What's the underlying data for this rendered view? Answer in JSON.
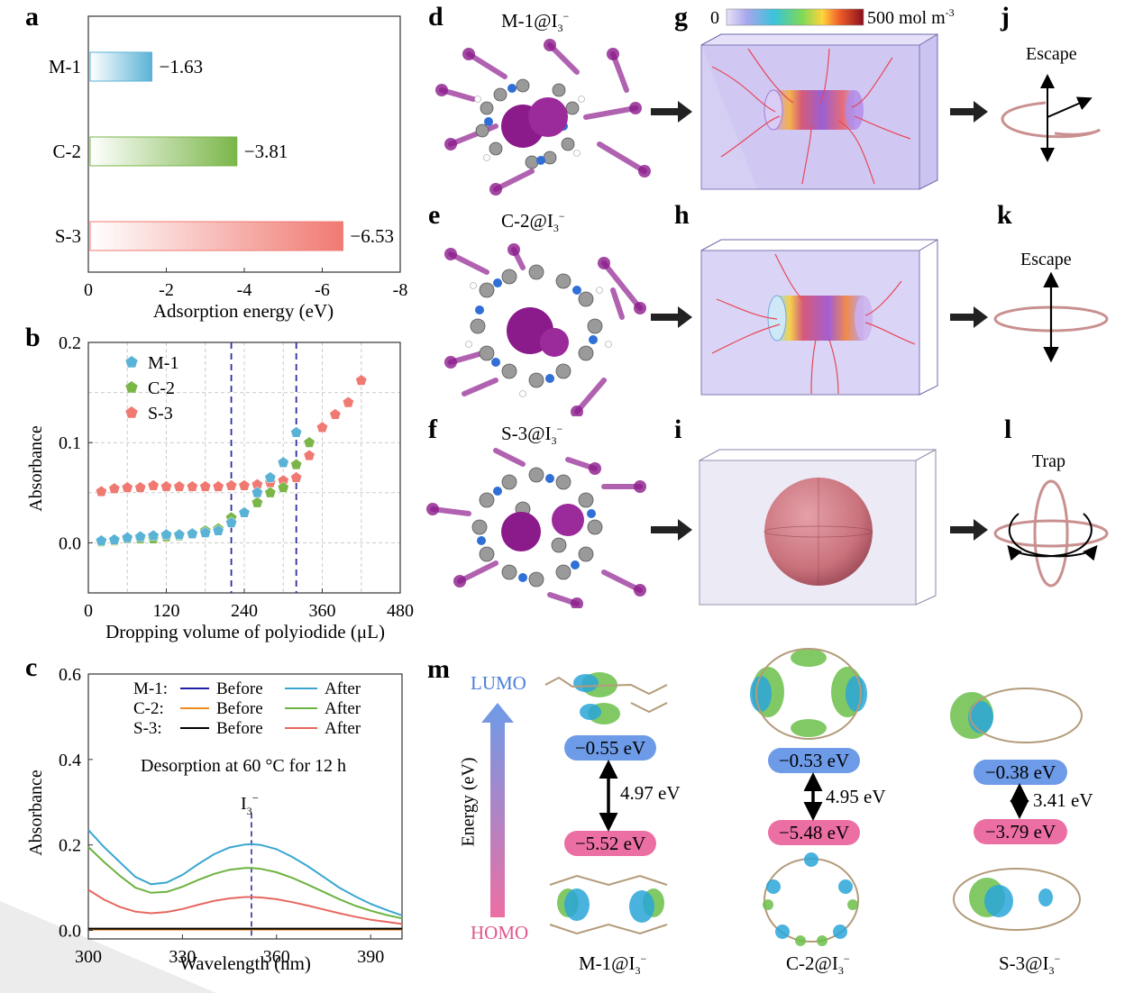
{
  "panel_letters": {
    "a": "a",
    "b": "b",
    "c": "c",
    "d": "d",
    "e": "e",
    "f": "f",
    "g": "g",
    "h": "h",
    "i": "i",
    "j": "j",
    "k": "k",
    "l": "l",
    "m": "m"
  },
  "colors": {
    "m1": "#5ab3d6",
    "c2": "#7ab648",
    "s3": "#f07a72",
    "lumo": "#6d9be8",
    "homo": "#ec6fa3",
    "iodine": "#8b1a8b",
    "dashed": "#2e2e9e"
  },
  "panel_a": {
    "xlabel": "Adsorption energy (eV)",
    "xticks": [
      "0",
      "-2",
      "-4",
      "-6",
      "-8"
    ]
  },
  "panel_b": {
    "xlabel": "Dropping volume of polyiodide (μL)",
    "ylabel": "Absorbance",
    "xticks": [
      "0",
      "120",
      "240",
      "360",
      "480"
    ],
    "yticks": [
      "0.0",
      "0.1",
      "0.2"
    ]
  },
  "panel_c": {
    "xlabel": "Wavelength (nm)",
    "ylabel": "Absorbance",
    "xticks": [
      "300",
      "330",
      "360",
      "390"
    ],
    "yticks": [
      "0.0",
      "0.2",
      "0.4",
      "0.6"
    ],
    "legend_rows": [
      {
        "name": "M-1:",
        "before": "Before",
        "after": "After"
      },
      {
        "name": "C-2:",
        "before": "Before",
        "after": "After"
      },
      {
        "name": "S-3:",
        "before": "Before",
        "after": "After"
      }
    ],
    "annotation": "Desorption at 60 °C for 12 h",
    "peak_label": "I",
    "peak_sub": "3",
    "peak_sup": "−"
  },
  "chart_data": [
    {
      "type": "bar",
      "orientation": "horizontal",
      "categories": [
        "M-1",
        "C-2",
        "S-3"
      ],
      "values": [
        -1.63,
        -3.81,
        -6.53
      ],
      "value_labels": [
        "−1.63",
        "−3.81",
        "−6.53"
      ],
      "title": "",
      "xlabel": "Adsorption energy (eV)",
      "ylabel": "",
      "xlim": [
        0,
        -8
      ]
    },
    {
      "type": "scatter",
      "xlabel": "Dropping volume of polyiodide (μL)",
      "ylabel": "Absorbance",
      "xlim": [
        0,
        480
      ],
      "ylim": [
        -0.05,
        0.2
      ],
      "vlines": [
        220,
        320
      ],
      "series": [
        {
          "name": "M-1",
          "marker": "pentagon",
          "x": [
            20,
            40,
            60,
            80,
            100,
            120,
            140,
            160,
            180,
            200,
            220,
            240,
            260,
            280,
            300,
            320
          ],
          "y": [
            0.002,
            0.003,
            0.005,
            0.006,
            0.007,
            0.008,
            0.008,
            0.009,
            0.01,
            0.012,
            0.02,
            0.03,
            0.05,
            0.065,
            0.08,
            0.11
          ]
        },
        {
          "name": "C-2",
          "marker": "pentagon",
          "x": [
            20,
            40,
            60,
            80,
            100,
            120,
            140,
            160,
            180,
            200,
            220,
            240,
            260,
            280,
            300,
            320,
            340
          ],
          "y": [
            0.001,
            0.002,
            0.004,
            0.004,
            0.004,
            0.006,
            0.007,
            0.009,
            0.012,
            0.014,
            0.025,
            0.03,
            0.04,
            0.05,
            0.055,
            0.078,
            0.1
          ]
        },
        {
          "name": "S-3",
          "marker": "pentagon",
          "x": [
            20,
            40,
            60,
            80,
            100,
            120,
            140,
            160,
            180,
            200,
            220,
            240,
            260,
            280,
            300,
            320,
            340,
            360,
            380,
            400,
            420
          ],
          "y": [
            0.051,
            0.054,
            0.055,
            0.055,
            0.057,
            0.056,
            0.056,
            0.056,
            0.056,
            0.056,
            0.057,
            0.057,
            0.058,
            0.06,
            0.062,
            0.065,
            0.087,
            0.115,
            0.128,
            0.14,
            0.162
          ]
        }
      ]
    },
    {
      "type": "line",
      "xlabel": "Wavelength (nm)",
      "ylabel": "Absorbance",
      "xlim": [
        300,
        400
      ],
      "ylim": [
        -0.02,
        0.6
      ],
      "vline": 352,
      "series": [
        {
          "name": "M-1 Before",
          "color": "#1f1fa8",
          "x": [
            300,
            400
          ],
          "y": [
            0.003,
            0.003
          ]
        },
        {
          "name": "C-2 Before",
          "color": "#f08a1c",
          "x": [
            300,
            400
          ],
          "y": [
            0.002,
            0.002
          ]
        },
        {
          "name": "S-3 Before",
          "color": "#000000",
          "x": [
            300,
            400
          ],
          "y": [
            0.004,
            0.004
          ]
        },
        {
          "name": "M-1 After",
          "color": "#3aa6d0",
          "x": [
            300,
            305,
            310,
            315,
            320,
            325,
            330,
            335,
            340,
            345,
            350,
            352,
            355,
            360,
            365,
            370,
            375,
            380,
            385,
            390,
            395,
            400
          ],
          "y": [
            0.235,
            0.195,
            0.16,
            0.125,
            0.108,
            0.112,
            0.13,
            0.155,
            0.178,
            0.194,
            0.201,
            0.202,
            0.2,
            0.19,
            0.172,
            0.15,
            0.125,
            0.1,
            0.08,
            0.062,
            0.048,
            0.035
          ]
        },
        {
          "name": "C-2 After",
          "color": "#6db33f",
          "x": [
            300,
            305,
            310,
            315,
            320,
            325,
            330,
            335,
            340,
            345,
            350,
            352,
            355,
            360,
            365,
            370,
            375,
            380,
            385,
            390,
            395,
            400
          ],
          "y": [
            0.195,
            0.16,
            0.128,
            0.1,
            0.088,
            0.09,
            0.102,
            0.118,
            0.132,
            0.142,
            0.146,
            0.146,
            0.144,
            0.136,
            0.123,
            0.107,
            0.09,
            0.073,
            0.058,
            0.046,
            0.036,
            0.028
          ]
        },
        {
          "name": "S-3 After",
          "color": "#e8665e",
          "x": [
            300,
            305,
            310,
            315,
            320,
            325,
            330,
            335,
            340,
            345,
            350,
            352,
            355,
            360,
            365,
            370,
            375,
            380,
            385,
            390,
            395,
            400
          ],
          "y": [
            0.095,
            0.072,
            0.055,
            0.044,
            0.04,
            0.043,
            0.05,
            0.06,
            0.069,
            0.075,
            0.078,
            0.078,
            0.077,
            0.073,
            0.066,
            0.058,
            0.049,
            0.04,
            0.032,
            0.025,
            0.02,
            0.015
          ]
        }
      ]
    }
  ],
  "panel_d": {
    "label": "M-1@I",
    "sub": "3",
    "sup": "−"
  },
  "panel_e": {
    "label": "C-2@I",
    "sub": "3",
    "sup": "−"
  },
  "panel_f": {
    "label": "S-3@I",
    "sub": "3",
    "sup": "−"
  },
  "panel_g": {
    "scale_min": "0",
    "scale_max": "500 mol m",
    "scale_sup": "-3"
  },
  "panel_j": {
    "label": "Escape"
  },
  "panel_k": {
    "label": "Escape"
  },
  "panel_l": {
    "label": "Trap"
  },
  "panel_m": {
    "lumo": "LUMO",
    "homo": "HOMO",
    "axis": "Energy (eV)",
    "molecules": [
      {
        "name": "M-1@I",
        "sub": "3",
        "sup": "−",
        "lumo": "−0.55 eV",
        "gap": "4.97 eV",
        "homo": "−5.52 eV"
      },
      {
        "name": "C-2@I",
        "sub": "3",
        "sup": "−",
        "lumo": "−0.53 eV",
        "gap": "4.95 eV",
        "homo": "−5.48 eV"
      },
      {
        "name": "S-3@I",
        "sub": "3",
        "sup": "−",
        "lumo": "−0.38 eV",
        "gap": "3.41 eV",
        "homo": "−3.79 eV"
      }
    ]
  }
}
